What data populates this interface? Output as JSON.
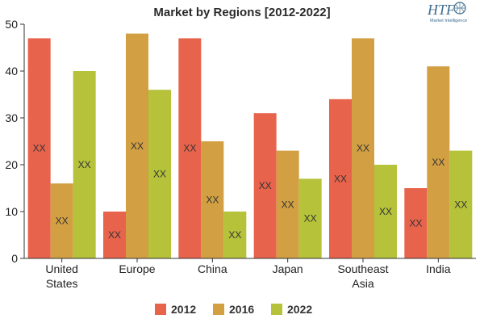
{
  "chart_data": {
    "type": "bar",
    "title": "Market by Regions [2012-2022]",
    "categories": [
      "United States",
      "Europe",
      "China",
      "Japan",
      "Southeast Asia",
      "India"
    ],
    "series": [
      {
        "name": "2012",
        "color": "#e8634c",
        "values": [
          47,
          10,
          47,
          31,
          34,
          15
        ]
      },
      {
        "name": "2016",
        "color": "#d2a043",
        "values": [
          16,
          48,
          25,
          23,
          47,
          41
        ]
      },
      {
        "name": "2022",
        "color": "#b5c23a",
        "values": [
          40,
          36,
          10,
          17,
          20,
          23
        ]
      }
    ],
    "bar_label": "XX",
    "ylim": [
      0,
      50
    ],
    "yticks": [
      0,
      10,
      20,
      30,
      40,
      50
    ],
    "grid": false,
    "legend_position": "bottom"
  },
  "logo": {
    "text": "HTF",
    "subtext": "Market Intelligence"
  }
}
